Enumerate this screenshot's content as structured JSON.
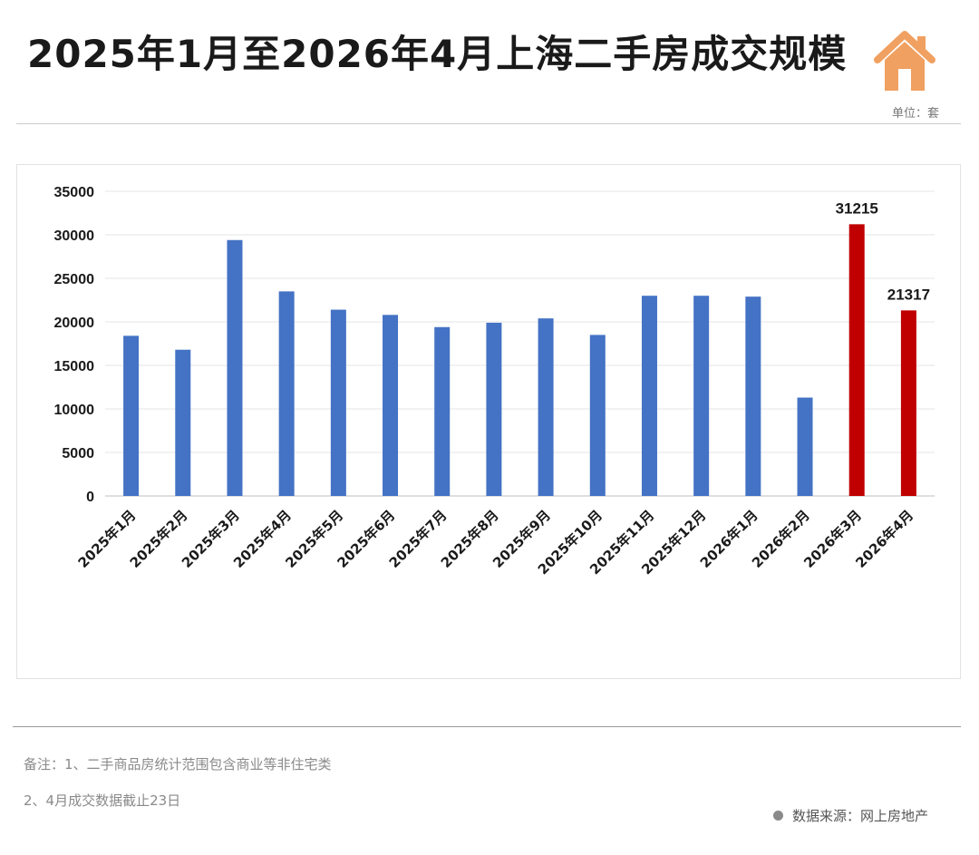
{
  "header": {
    "title": "2025年1月至2026年4月上海二手房成交规模",
    "unit": "单位：套",
    "icon": "house-icon"
  },
  "footer": {
    "note_line1": "备注：1、二手商品房统计范围包含商业等非住宅类",
    "note_line2": "2、4月成交数据截止23日",
    "source": "数据来源：网上房地产"
  },
  "colors": {
    "bar_blue": "#4472C4",
    "bar_red": "#C00000",
    "icon_orange": "#F0A060"
  },
  "chart_data": {
    "type": "bar",
    "title": "",
    "xlabel": "",
    "ylabel": "",
    "ylim": [
      0,
      35000
    ],
    "yticks": [
      0,
      5000,
      10000,
      15000,
      20000,
      25000,
      30000,
      35000
    ],
    "grid": true,
    "categories": [
      "2025年1月",
      "2025年2月",
      "2025年3月",
      "2025年4月",
      "2025年5月",
      "2025年6月",
      "2025年7月",
      "2025年8月",
      "2025年9月",
      "2025年10月",
      "2025年11月",
      "2025年12月",
      "2026年1月",
      "2026年2月",
      "2026年3月",
      "2026年4月"
    ],
    "values": [
      18400,
      16800,
      29400,
      23500,
      21400,
      20800,
      19400,
      19900,
      20400,
      18500,
      23000,
      23000,
      22900,
      11300,
      31215,
      21317
    ],
    "highlight": [
      false,
      false,
      false,
      false,
      false,
      false,
      false,
      false,
      false,
      false,
      false,
      false,
      false,
      false,
      true,
      true
    ],
    "data_labels": [
      "",
      "",
      "",
      "",
      "",
      "",
      "",
      "",
      "",
      "",
      "",
      "",
      "",
      "",
      "31215",
      "21317"
    ]
  }
}
